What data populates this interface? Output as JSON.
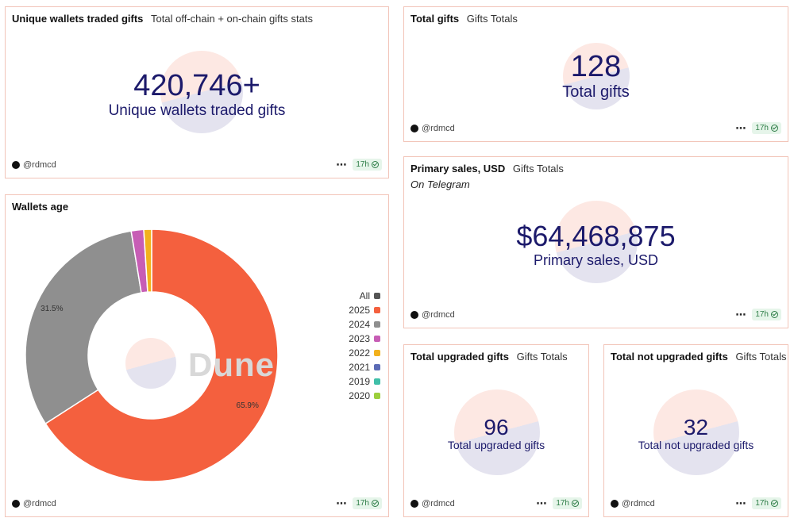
{
  "footer": {
    "author": "@rdmcd",
    "age": "17h",
    "menu": "⋯"
  },
  "unique_wallets": {
    "title": "Unique wallets traded gifts",
    "subtitle": "Total off-chain + on-chain gifts stats",
    "value": "420,746+",
    "label": "Unique wallets traded gifts"
  },
  "total_gifts": {
    "title": "Total gifts",
    "subtitle": "Gifts Totals",
    "value": "128",
    "label": "Total gifts"
  },
  "primary_sales": {
    "title": "Primary sales, USD",
    "subtitle": "Gifts Totals",
    "note": "On Telegram",
    "value": "$64,468,875",
    "label": "Primary sales, USD"
  },
  "upgraded": {
    "title": "Total upgraded gifts",
    "subtitle": "Gifts Totals",
    "value": "96",
    "label": "Total upgraded gifts"
  },
  "not_upgraded": {
    "title": "Total not upgraded gifts",
    "subtitle": "Gifts Totals",
    "value": "32",
    "label": "Total not upgraded gifts"
  },
  "wallets_age": {
    "title": "Wallets age",
    "watermark_text": "Dune",
    "legend": [
      {
        "label": "All",
        "color": "#555555"
      },
      {
        "label": "2025",
        "color": "#f4603e"
      },
      {
        "label": "2024",
        "color": "#8f8f8f"
      },
      {
        "label": "2023",
        "color": "#c75db5"
      },
      {
        "label": "2022",
        "color": "#f2b11d"
      },
      {
        "label": "2021",
        "color": "#5b6bb5"
      },
      {
        "label": "2019",
        "color": "#3fbfa8"
      },
      {
        "label": "2020",
        "color": "#9ccf3c"
      }
    ]
  },
  "chart_data": {
    "type": "pie",
    "categories": [
      "2025",
      "2024",
      "2023",
      "2022"
    ],
    "values": [
      65.9,
      31.5,
      1.6,
      1.0
    ],
    "data_labels": [
      "65.9%",
      "31.5%",
      "",
      ""
    ],
    "colors": [
      "#f4603e",
      "#8f8f8f",
      "#c75db5",
      "#f2b11d"
    ],
    "legend_position": "right"
  }
}
